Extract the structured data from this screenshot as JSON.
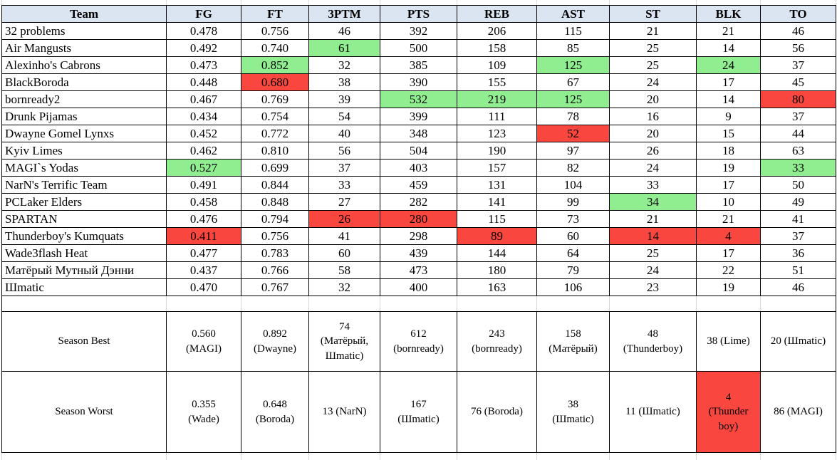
{
  "colors": {
    "header_bg": "#dbe5f1",
    "highlight_good": "#90ee90",
    "highlight_bad": "#f9473f",
    "border": "#000000",
    "faint_grid": "#d9d9d9",
    "text": "#000000"
  },
  "table": {
    "columns": [
      "Team",
      "FG",
      "FT",
      "3PTM",
      "PTS",
      "REB",
      "AST",
      "ST",
      "BLK",
      "TO"
    ],
    "rows": [
      {
        "team": "32 problems",
        "values": [
          "0.478",
          "0.756",
          "46",
          "392",
          "206",
          "115",
          "21",
          "21",
          "46"
        ],
        "hl": [
          "",
          "",
          "",
          "",
          "",
          "",
          "",
          "",
          ""
        ]
      },
      {
        "team": "Air Mangusts",
        "values": [
          "0.492",
          "0.740",
          "61",
          "500",
          "158",
          "85",
          "25",
          "14",
          "56"
        ],
        "hl": [
          "",
          "",
          "g",
          "",
          "",
          "",
          "",
          "",
          ""
        ]
      },
      {
        "team": "Alexinho's Cabrons",
        "values": [
          "0.473",
          "0.852",
          "32",
          "385",
          "109",
          "125",
          "25",
          "24",
          "37"
        ],
        "hl": [
          "",
          "g",
          "",
          "",
          "",
          "g",
          "",
          "g",
          ""
        ]
      },
      {
        "team": "BlackBoroda",
        "values": [
          "0.448",
          "0.680",
          "38",
          "390",
          "155",
          "67",
          "24",
          "17",
          "45"
        ],
        "hl": [
          "",
          "r",
          "",
          "",
          "",
          "",
          "",
          "",
          ""
        ]
      },
      {
        "team": "bornready2",
        "values": [
          "0.467",
          "0.769",
          "39",
          "532",
          "219",
          "125",
          "20",
          "14",
          "80"
        ],
        "hl": [
          "",
          "",
          "",
          "g",
          "g",
          "g",
          "",
          "",
          "r"
        ]
      },
      {
        "team": "Drunk Pijamas",
        "values": [
          "0.434",
          "0.754",
          "54",
          "399",
          "111",
          "78",
          "16",
          "9",
          "37"
        ],
        "hl": [
          "",
          "",
          "",
          "",
          "",
          "",
          "",
          "",
          ""
        ]
      },
      {
        "team": "Dwayne Gomel Lynxs",
        "values": [
          "0.452",
          "0.772",
          "40",
          "348",
          "123",
          "52",
          "20",
          "15",
          "44"
        ],
        "hl": [
          "",
          "",
          "",
          "",
          "",
          "r",
          "",
          "",
          ""
        ]
      },
      {
        "team": "Kyiv Limes",
        "values": [
          "0.462",
          "0.810",
          "56",
          "504",
          "190",
          "97",
          "26",
          "18",
          "63"
        ],
        "hl": [
          "",
          "",
          "",
          "",
          "",
          "",
          "",
          "",
          ""
        ]
      },
      {
        "team": "MAGI`s Yodas",
        "values": [
          "0.527",
          "0.699",
          "37",
          "403",
          "157",
          "82",
          "24",
          "19",
          "33"
        ],
        "hl": [
          "g",
          "",
          "",
          "",
          "",
          "",
          "",
          "",
          "g"
        ]
      },
      {
        "team": "NarN's Terrific Team",
        "values": [
          "0.491",
          "0.844",
          "33",
          "459",
          "131",
          "104",
          "33",
          "17",
          "50"
        ],
        "hl": [
          "",
          "",
          "",
          "",
          "",
          "",
          "",
          "",
          ""
        ]
      },
      {
        "team": "PCLaker Elders",
        "values": [
          "0.458",
          "0.848",
          "27",
          "282",
          "141",
          "99",
          "34",
          "10",
          "49"
        ],
        "hl": [
          "",
          "",
          "",
          "",
          "",
          "",
          "g",
          "",
          ""
        ]
      },
      {
        "team": "SPARTAN",
        "values": [
          "0.476",
          "0.794",
          "26",
          "280",
          "115",
          "73",
          "21",
          "21",
          "41"
        ],
        "hl": [
          "",
          "",
          "r",
          "r",
          "",
          "",
          "",
          "",
          ""
        ]
      },
      {
        "team": "Thunderboy's Kumquats",
        "values": [
          "0.411",
          "0.756",
          "41",
          "298",
          "89",
          "60",
          "14",
          "4",
          "37"
        ],
        "hl": [
          "r",
          "",
          "",
          "",
          "r",
          "",
          "r",
          "r",
          ""
        ]
      },
      {
        "team": "Wade3flash Heat",
        "values": [
          "0.477",
          "0.783",
          "60",
          "439",
          "144",
          "64",
          "25",
          "17",
          "36"
        ],
        "hl": [
          "",
          "",
          "",
          "",
          "",
          "",
          "",
          "",
          ""
        ]
      },
      {
        "team": "Матёрый Мутный Дэнни",
        "values": [
          "0.437",
          "0.766",
          "58",
          "473",
          "180",
          "79",
          "24",
          "22",
          "51"
        ],
        "hl": [
          "",
          "",
          "",
          "",
          "",
          "",
          "",
          "",
          ""
        ]
      },
      {
        "team": "Шmatic",
        "values": [
          "0.470",
          "0.767",
          "32",
          "400",
          "163",
          "106",
          "23",
          "19",
          "46"
        ],
        "hl": [
          "",
          "",
          "",
          "",
          "",
          "",
          "",
          "",
          ""
        ]
      }
    ],
    "summary_rows": [
      {
        "label": "Season Best",
        "values": [
          "0.560 (MAGI)",
          "0.892 (Dwayne)",
          "74 (Матёрый, Шmatic)",
          "612 (bornready)",
          "243 (bornready)",
          "158 (Матёрый)",
          "48 (Thunderboy)",
          "38 (Lime)",
          "20 (Шmatic)"
        ],
        "hl": [
          "",
          "",
          "",
          "",
          "",
          "",
          "",
          "",
          ""
        ]
      },
      {
        "label": "Season Worst",
        "values": [
          "0.355 (Wade)",
          "0.648 (Boroda)",
          "13 (NarN)",
          "167 (Шmatic)",
          "76 (Boroda)",
          "38 (Шmatic)",
          "11 (Шmatic)",
          "4 (Thunder boy)",
          "86 (MAGI)"
        ],
        "hl": [
          "",
          "",
          "",
          "",
          "",
          "",
          "",
          "r",
          ""
        ]
      }
    ]
  }
}
